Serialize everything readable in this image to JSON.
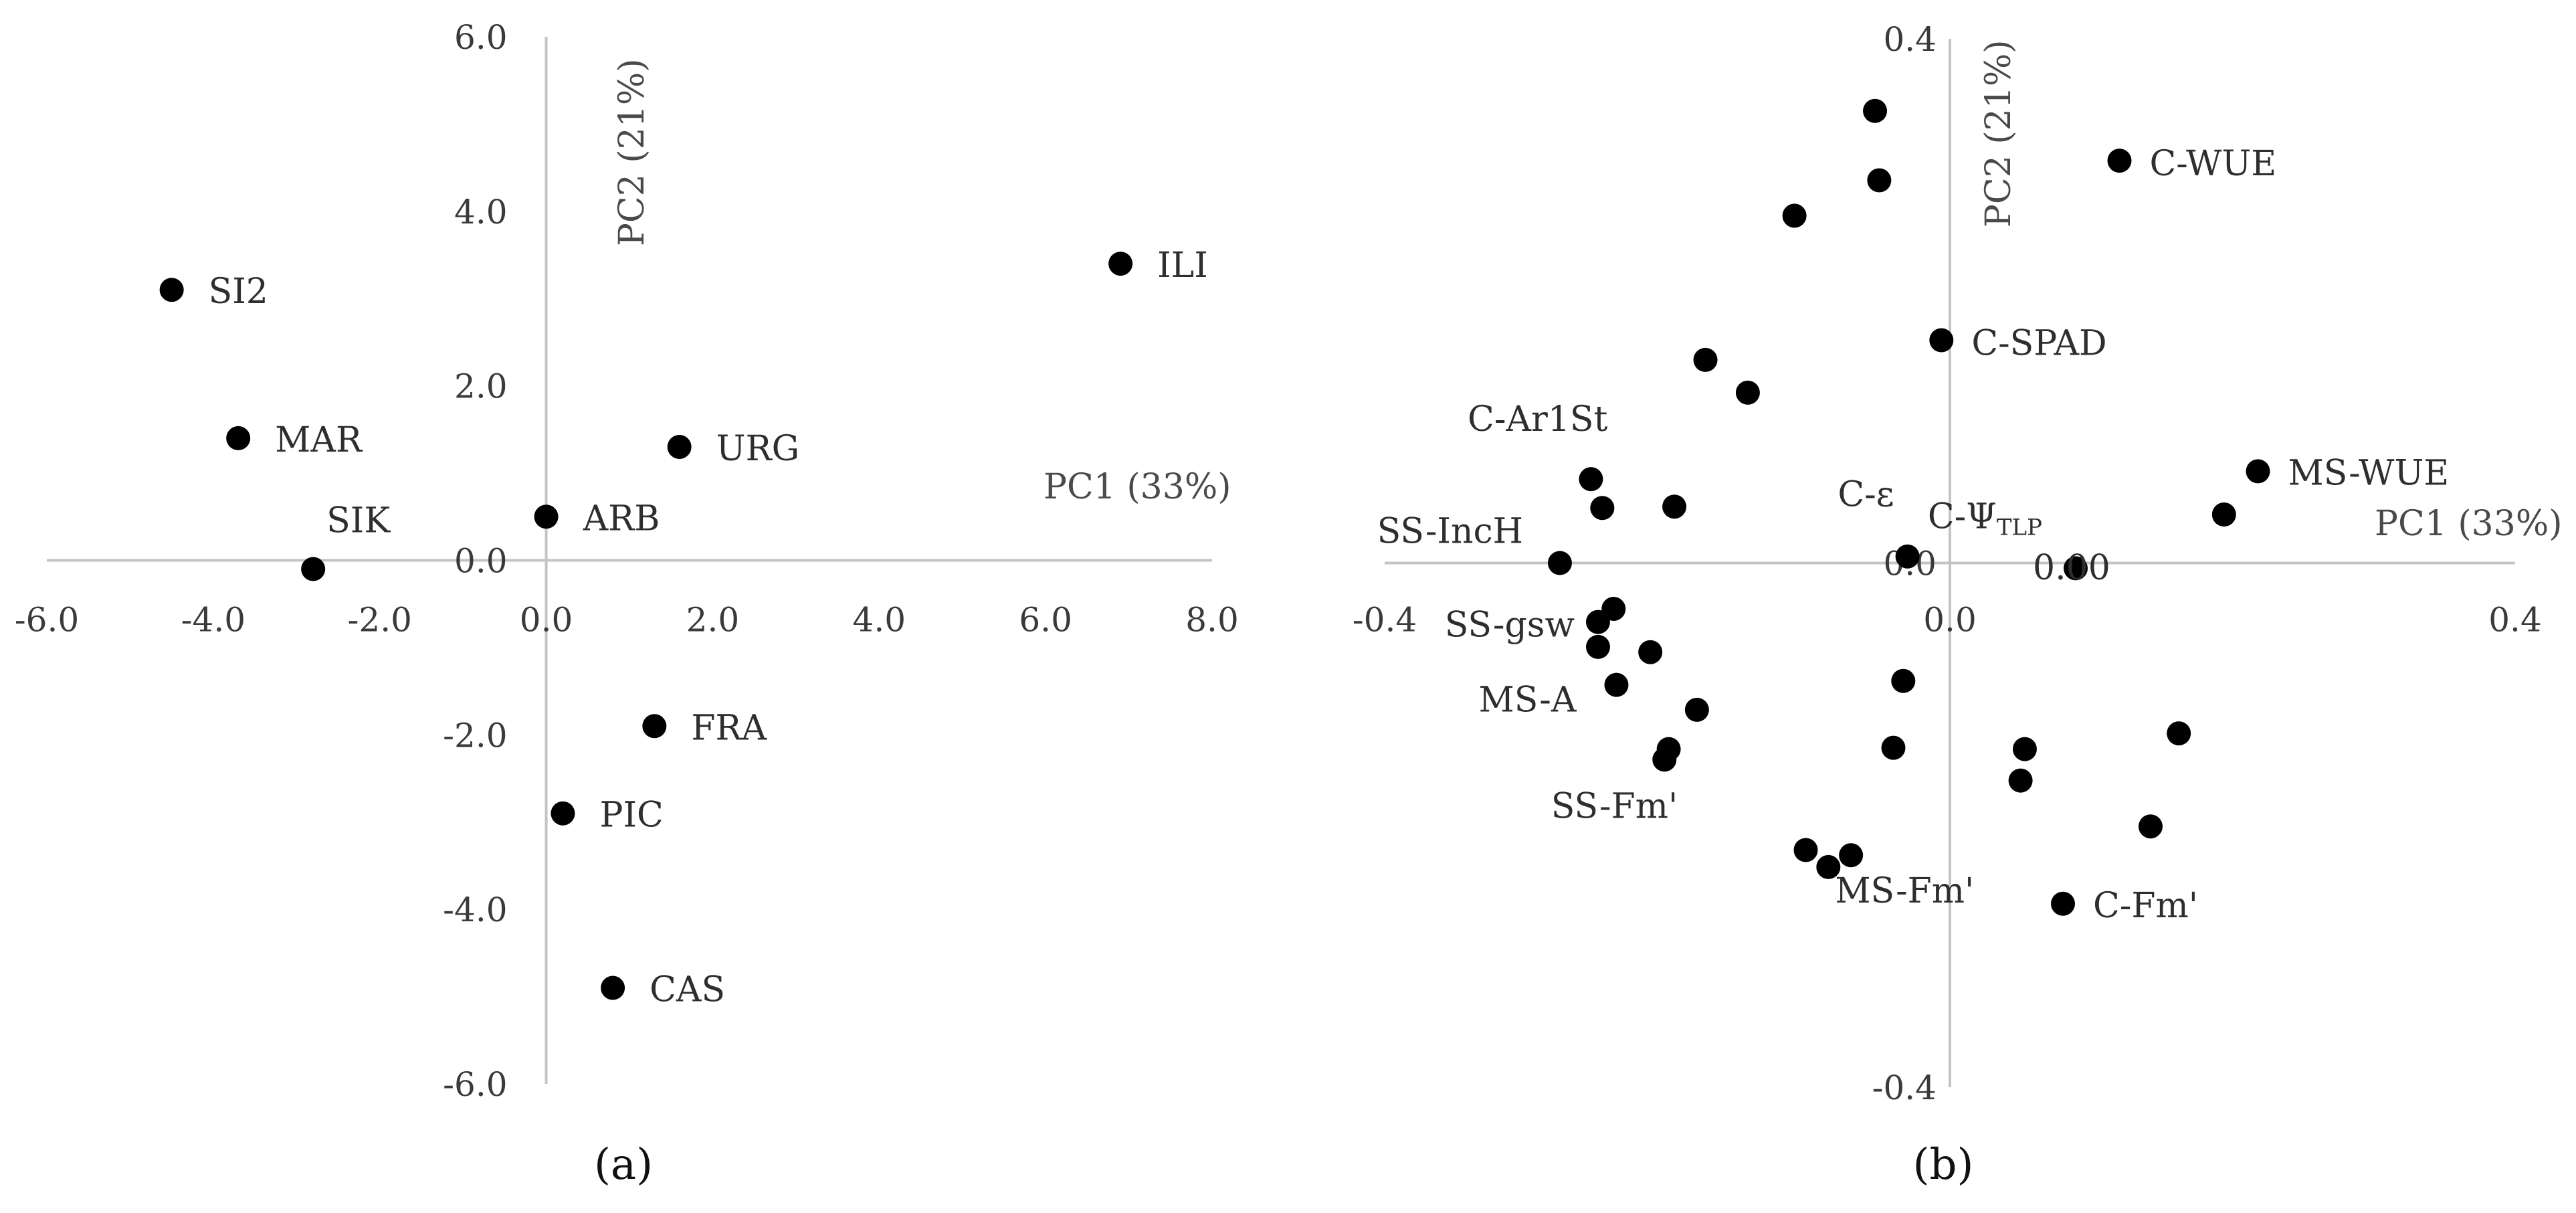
{
  "chart_data": [
    {
      "type": "scatter",
      "panel_label": "(a)",
      "xlabel": "PC1 (33%)",
      "ylabel": "PC2 (21%)",
      "xlim": [
        -6.0,
        8.0
      ],
      "ylim": [
        -6.0,
        6.0
      ],
      "x_ticks": [
        "-6.0",
        "-4.0",
        "-2.0",
        "0.0",
        "2.0",
        "4.0",
        "6.0",
        "8.0"
      ],
      "x_tick_values": [
        -6,
        -4,
        -2,
        0,
        2,
        4,
        6,
        8
      ],
      "y_ticks": [
        "6.0",
        "4.0",
        "2.0",
        "0.0",
        "-2.0",
        "-4.0",
        "-6.0"
      ],
      "y_tick_values": [
        6,
        4,
        2,
        0,
        -2,
        -4,
        -6
      ],
      "grid": false,
      "points": [
        {
          "label": "SI2",
          "x": -4.5,
          "y": 3.1
        },
        {
          "label": "MAR",
          "x": -3.7,
          "y": 1.4
        },
        {
          "label": "SIK",
          "x": -2.8,
          "y": -0.1
        },
        {
          "label": "ARB",
          "x": 0.0,
          "y": 0.5
        },
        {
          "label": "URG",
          "x": 1.6,
          "y": 1.3
        },
        {
          "label": "ILI",
          "x": 6.9,
          "y": 3.4
        },
        {
          "label": "FRA",
          "x": 1.3,
          "y": -1.9
        },
        {
          "label": "PIC",
          "x": 0.2,
          "y": -2.9
        },
        {
          "label": "CAS",
          "x": 0.8,
          "y": -4.9
        }
      ]
    },
    {
      "type": "scatter",
      "panel_label": "(b)",
      "xlabel": "PC1 (33%)",
      "ylabel": "PC2 (21%)",
      "xlim": [
        -0.4,
        0.4
      ],
      "ylim": [
        -0.4,
        0.4
      ],
      "x_ticks": [
        "-0.4",
        "0.0",
        "0.4"
      ],
      "x_tick_values": [
        -0.4,
        0.0,
        0.4
      ],
      "y_ticks": [
        "0.4",
        "0.0",
        "-0.4"
      ],
      "y_tick_values": [
        0.4,
        0.0,
        -0.4
      ],
      "grid": false,
      "points": [
        {
          "label": "",
          "x": -0.053,
          "y": 0.345
        },
        {
          "label": "",
          "x": -0.05,
          "y": 0.292
        },
        {
          "label": "",
          "x": -0.11,
          "y": 0.265
        },
        {
          "label": "C-WUE",
          "x": 0.12,
          "y": 0.307
        },
        {
          "label": "C-SPAD",
          "x": -0.006,
          "y": 0.17
        },
        {
          "label": "",
          "x": -0.173,
          "y": 0.155
        },
        {
          "label": "",
          "x": -0.143,
          "y": 0.13
        },
        {
          "label": "C-Ar1St",
          "x": -0.254,
          "y": 0.064
        },
        {
          "label": "",
          "x": -0.246,
          "y": 0.042
        },
        {
          "label": "",
          "x": -0.195,
          "y": 0.043
        },
        {
          "label": "MS-WUE",
          "x": 0.218,
          "y": 0.07
        },
        {
          "label": "",
          "x": 0.194,
          "y": 0.037
        },
        {
          "label": "C-ε",
          "x": -0.03,
          "y": 0.005
        },
        {
          "label": "C-ΨTLP",
          "x": 0.089,
          "y": -0.004
        },
        {
          "label": "SS-IncH",
          "x": -0.276,
          "y": 0.0
        },
        {
          "label": "",
          "x": -0.238,
          "y": -0.035
        },
        {
          "label": "SS-gsw",
          "x": -0.249,
          "y": -0.045
        },
        {
          "label": "",
          "x": -0.249,
          "y": -0.064
        },
        {
          "label": "",
          "x": -0.212,
          "y": -0.068
        },
        {
          "label": "MS-A",
          "x": -0.236,
          "y": -0.093
        },
        {
          "label": "",
          "x": -0.179,
          "y": -0.112
        },
        {
          "label": "",
          "x": -0.033,
          "y": -0.09
        },
        {
          "label": "",
          "x": -0.199,
          "y": -0.142
        },
        {
          "label": "SS-Fm'",
          "x": -0.202,
          "y": -0.15
        },
        {
          "label": "",
          "x": -0.04,
          "y": -0.141
        },
        {
          "label": "",
          "x": 0.053,
          "y": -0.142
        },
        {
          "label": "",
          "x": 0.162,
          "y": -0.13
        },
        {
          "label": "",
          "x": 0.05,
          "y": -0.166
        },
        {
          "label": "",
          "x": 0.142,
          "y": -0.201
        },
        {
          "label": "",
          "x": -0.102,
          "y": -0.219
        },
        {
          "label": "",
          "x": -0.07,
          "y": -0.223
        },
        {
          "label": "MS-Fm'",
          "x": -0.086,
          "y": -0.232
        },
        {
          "label": "C-Fm'",
          "x": 0.08,
          "y": -0.26
        }
      ],
      "annotations": [
        "0.00"
      ]
    }
  ]
}
